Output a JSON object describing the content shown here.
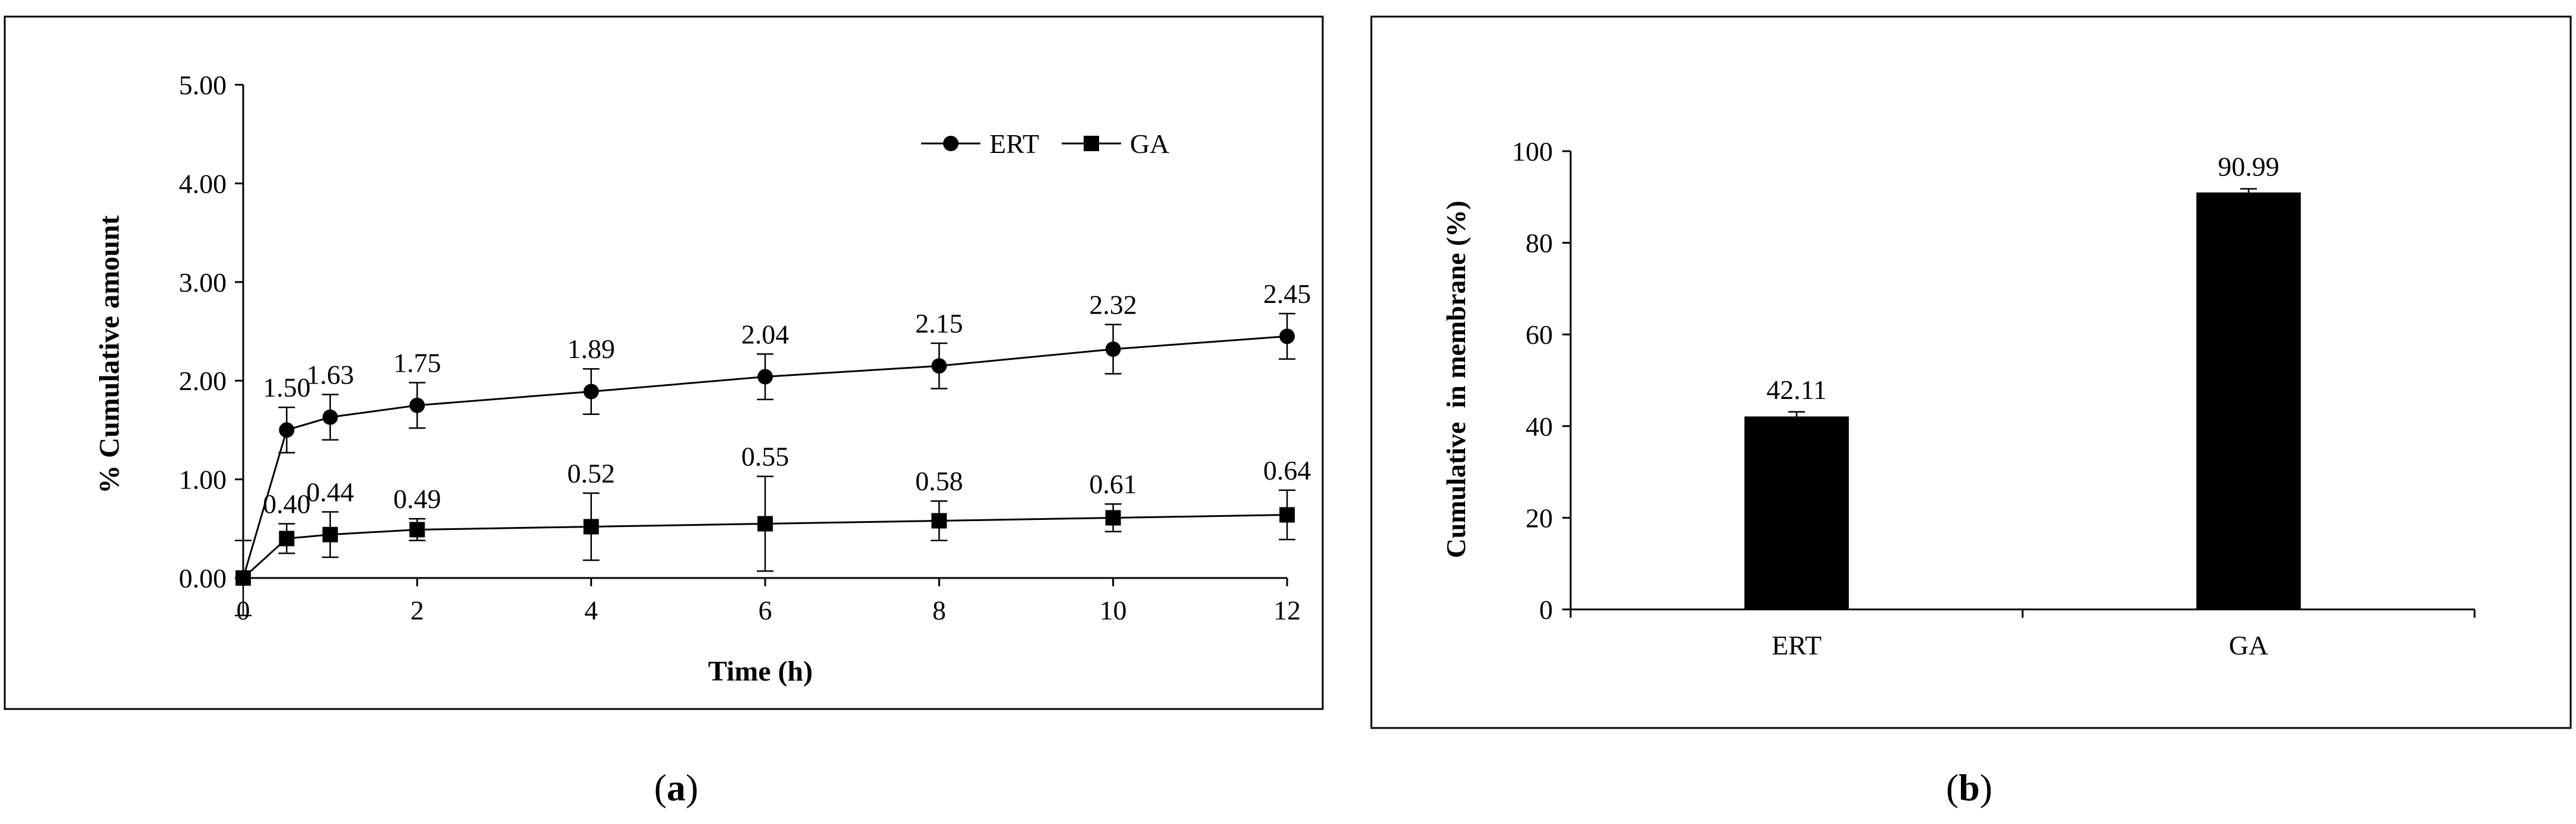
{
  "figure": {
    "panel_a_caption": "a",
    "panel_b_caption": "b"
  },
  "chart_data": [
    {
      "type": "line",
      "xlabel": "Time (h)",
      "ylabel": "% Cumulative amount",
      "xlim": [
        0,
        12
      ],
      "ylim": [
        0,
        5
      ],
      "x_ticks": [
        "0",
        "2",
        "4",
        "6",
        "8",
        "10",
        "12"
      ],
      "y_ticks": [
        "0.00",
        "1.00",
        "2.00",
        "3.00",
        "4.00",
        "5.00"
      ],
      "legend_position": "top-right",
      "grid": false,
      "series": [
        {
          "name": "ERT",
          "marker": "circle",
          "points": [
            {
              "x": 0,
              "y": 0,
              "err": 0.0,
              "label": ""
            },
            {
              "x": 0.5,
              "y": 1.5,
              "err": 0.23,
              "label": "1.50"
            },
            {
              "x": 1,
              "y": 1.63,
              "err": 0.23,
              "label": "1.63"
            },
            {
              "x": 2,
              "y": 1.75,
              "err": 0.23,
              "label": "1.75"
            },
            {
              "x": 4,
              "y": 1.89,
              "err": 0.23,
              "label": "1.89"
            },
            {
              "x": 6,
              "y": 2.04,
              "err": 0.23,
              "label": "2.04"
            },
            {
              "x": 8,
              "y": 2.15,
              "err": 0.23,
              "label": "2.15"
            },
            {
              "x": 10,
              "y": 2.32,
              "err": 0.25,
              "label": "2.32"
            },
            {
              "x": 12,
              "y": 2.45,
              "err": 0.23,
              "label": "2.45"
            }
          ]
        },
        {
          "name": "GA",
          "marker": "square",
          "points": [
            {
              "x": 0,
              "y": 0,
              "err": 0.38,
              "label": ""
            },
            {
              "x": 0.5,
              "y": 0.4,
              "err": 0.15,
              "label": "0.40"
            },
            {
              "x": 1,
              "y": 0.44,
              "err": 0.23,
              "label": "0.44"
            },
            {
              "x": 2,
              "y": 0.49,
              "err": 0.11,
              "label": "0.49"
            },
            {
              "x": 4,
              "y": 0.52,
              "err": 0.34,
              "label": "0.52"
            },
            {
              "x": 6,
              "y": 0.55,
              "err": 0.48,
              "label": "0.55"
            },
            {
              "x": 8,
              "y": 0.58,
              "err": 0.2,
              "label": "0.58"
            },
            {
              "x": 10,
              "y": 0.61,
              "err": 0.14,
              "label": "0.61"
            },
            {
              "x": 12,
              "y": 0.64,
              "err": 0.25,
              "label": "0.64"
            }
          ]
        }
      ]
    },
    {
      "type": "bar",
      "categories": [
        "ERT",
        "GA"
      ],
      "values": [
        42.11,
        90.99
      ],
      "errors": [
        1.0,
        0.8
      ],
      "value_labels": [
        "42.11",
        "90.99"
      ],
      "xlabel": "",
      "ylabel": "Cumulative  in membrane (%)",
      "ylim": [
        0,
        100
      ],
      "y_ticks": [
        "0",
        "20",
        "40",
        "60",
        "80",
        "100"
      ],
      "grid": false,
      "bar_color": "#000000"
    }
  ]
}
